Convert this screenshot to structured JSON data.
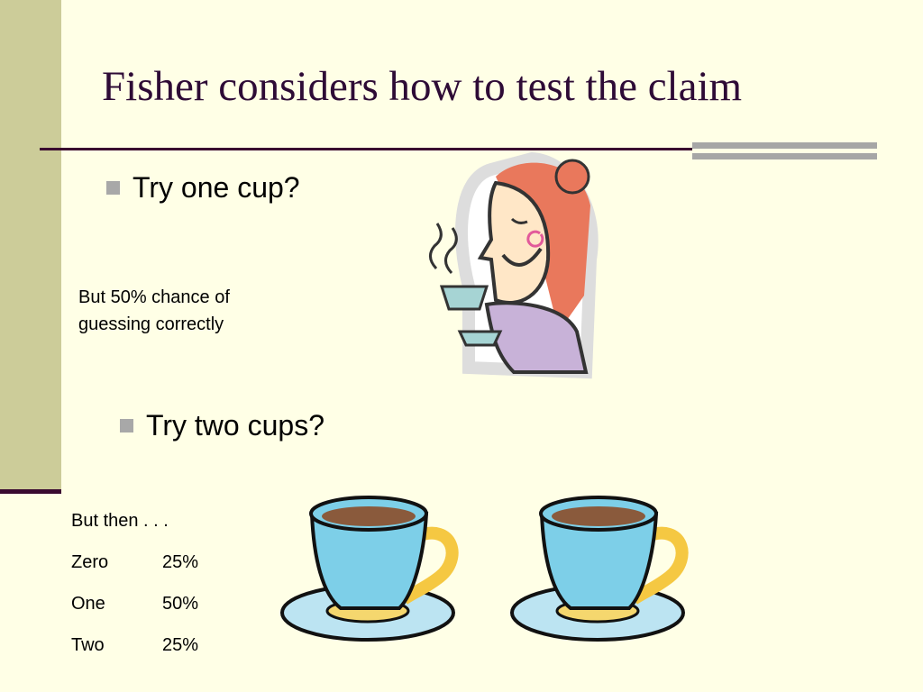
{
  "slide": {
    "title": "Fisher considers how to test the claim",
    "bullet1": "Try one cup?",
    "note": [
      "But 50% chance of",
      "guessing correctly"
    ],
    "bullet2": "Try two cups?",
    "table": {
      "header": "But then . . .",
      "rows": [
        {
          "label": "Zero",
          "value": "25%"
        },
        {
          "label": "One",
          "value": "50%"
        },
        {
          "label": "Two",
          "value": "25%"
        }
      ]
    }
  },
  "colors": {
    "background": "#FFFFE6",
    "sidebar": "#CCCC99",
    "title": "#2E0B36",
    "bullet": "#A8A8A8"
  },
  "images": [
    "woman-sipping-tea-clipart",
    "teacup-clipart",
    "teacup-clipart"
  ]
}
